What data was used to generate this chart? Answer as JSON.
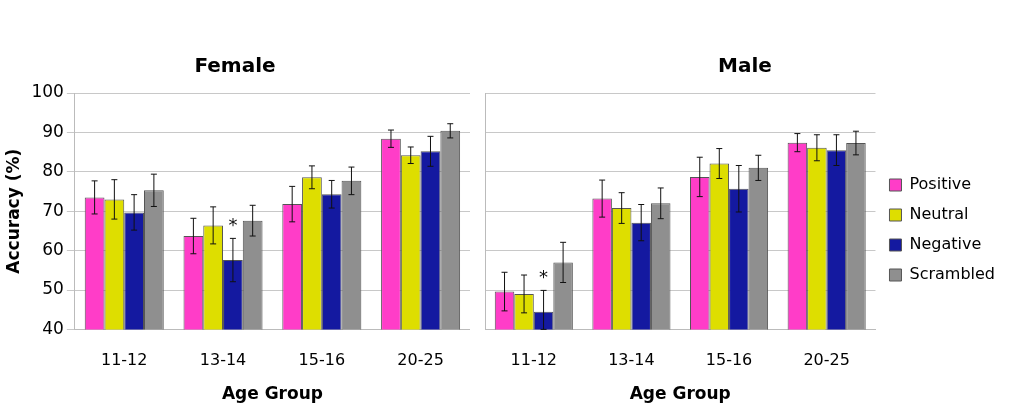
{
  "chart_data": [
    {
      "type": "bar",
      "title": "Female",
      "xlabel": "Age Group",
      "ylabel": "Accuracy (%)",
      "categories": [
        "11-12",
        "13-14",
        "15-16",
        "20-25"
      ],
      "ylim": [
        40,
        100
      ],
      "yticks": [
        40,
        50,
        60,
        70,
        80,
        90,
        100
      ],
      "grid": "y",
      "legend": false,
      "series": [
        {
          "color": "#ff3dc8",
          "values": [
            73.5,
            63.7,
            71.8,
            88.4
          ],
          "errors": [
            4.2,
            4.5,
            4.5,
            2.2
          ]
        },
        {
          "color": "#dede00",
          "values": [
            73.0,
            66.4,
            78.6,
            84.2
          ],
          "errors": [
            5.0,
            4.7,
            2.9,
            2.1
          ]
        },
        {
          "color": "#1419a0",
          "values": [
            69.7,
            57.6,
            74.3,
            85.2
          ],
          "errors": [
            4.5,
            5.5,
            3.5,
            3.8
          ]
        },
        {
          "color": "#8f8f8f",
          "values": [
            75.3,
            67.6,
            77.7,
            90.4
          ],
          "errors": [
            4.1,
            3.9,
            3.5,
            1.8
          ]
        }
      ],
      "annotations": [
        {
          "text": "*",
          "x": "13-14",
          "y": 57.6
        }
      ]
    },
    {
      "type": "bar",
      "title": "Male",
      "xlabel": "Age Group",
      "categories": [
        "11-12",
        "13-14",
        "15-16",
        "20-25"
      ],
      "ylim": [
        40,
        100
      ],
      "yticks": [
        40,
        50,
        60,
        70,
        80,
        90,
        100
      ],
      "grid": "y",
      "legend": "right",
      "tick_labels": "x",
      "series": [
        {
          "name": "Positive",
          "color": "#ff3dc8",
          "values": [
            49.6,
            73.2,
            78.7,
            87.4
          ],
          "errors": [
            4.9,
            4.7,
            5.0,
            2.3
          ]
        },
        {
          "name": "Neutral",
          "color": "#dede00",
          "values": [
            49.0,
            70.8,
            82.1,
            86.1
          ],
          "errors": [
            4.8,
            3.9,
            3.8,
            3.3
          ]
        },
        {
          "name": "Negative",
          "color": "#1419a0",
          "values": [
            44.5,
            67.1,
            75.7,
            85.5
          ],
          "errors": [
            [
              40,
              49.9
            ],
            4.6,
            5.9,
            3.9
          ]
        },
        {
          "name": "Scrambled",
          "color": "#8f8f8f",
          "values": [
            57.0,
            72.0,
            81.0,
            87.3
          ],
          "errors": [
            5.1,
            3.9,
            3.2,
            3.0
          ]
        }
      ],
      "annotations": [
        {
          "text": "*",
          "x": "11-12",
          "y": 44.5
        }
      ]
    }
  ]
}
